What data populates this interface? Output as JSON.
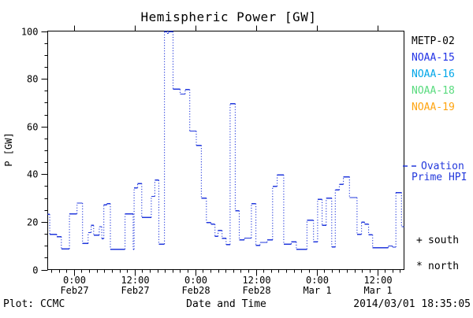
{
  "title": "Hemispheric Power [GW]",
  "axes": {
    "ylabel": "P [GW]",
    "xlabel": "Date and Time"
  },
  "legend": {
    "satellites": [
      {
        "label": "METP-02",
        "color": "#000000"
      },
      {
        "label": "NOAA-15",
        "color": "#2233E6"
      },
      {
        "label": "NOAA-16",
        "color": "#00A6E8"
      },
      {
        "label": "NOAA-18",
        "color": "#59DB7E"
      },
      {
        "label": "NOAA-19",
        "color": "#FFA410"
      }
    ],
    "line_sample_color": "#2238DC",
    "line_label_1": "Ovation",
    "line_label_2": "Prime HPI",
    "south_symbol": "+",
    "south_label": "south",
    "north_symbol": "*",
    "north_label": "north"
  },
  "footer": {
    "left": "Plot: CCMC",
    "right": "2014/03/01 18:35:05"
  },
  "chart_data": {
    "type": "line",
    "step_mode": "step-after",
    "line_style": "solid horizontals, dotted vertical connectors",
    "title": "Hemispheric Power [GW]",
    "xlabel": "Date and Time",
    "ylabel": "P [GW]",
    "ylim": [
      0,
      100
    ],
    "yticks_major": [
      0,
      20,
      40,
      60,
      80,
      100
    ],
    "ytick_minor_step": 5,
    "x_unit": "hours since 2014-02-27 00:00",
    "xlim": [
      -5.2,
      65.3
    ],
    "xtick_minor_step": 1.5,
    "xticks_major": [
      {
        "hour": 0,
        "time": "0:00",
        "date": "Feb27"
      },
      {
        "hour": 12,
        "time": "12:00",
        "date": "Feb27"
      },
      {
        "hour": 24,
        "time": "0:00",
        "date": "Feb28"
      },
      {
        "hour": 36,
        "time": "12:00",
        "date": "Feb28"
      },
      {
        "hour": 48,
        "time": "0:00",
        "date": "Mar 1"
      },
      {
        "hour": 60,
        "time": "12:00",
        "date": "Mar 1"
      }
    ],
    "series": [
      {
        "name": "Ovation Prime HPI",
        "color": "#2238DC",
        "points": [
          [
            -5.2,
            23.2
          ],
          [
            -4.8,
            14.8
          ],
          [
            -3.4,
            13.8
          ],
          [
            -2.5,
            8.7
          ],
          [
            -0.9,
            23.4
          ],
          [
            0.6,
            27.9
          ],
          [
            1.7,
            11.0
          ],
          [
            2.8,
            15.5
          ],
          [
            3.4,
            18.5
          ],
          [
            3.9,
            14.5
          ],
          [
            5.0,
            18.0
          ],
          [
            5.5,
            13.0
          ],
          [
            5.9,
            27.1
          ],
          [
            6.5,
            27.7
          ],
          [
            7.2,
            8.5
          ],
          [
            10.1,
            23.3
          ],
          [
            11.7,
            8.5
          ],
          [
            11.9,
            34.3
          ],
          [
            12.6,
            36.1
          ],
          [
            13.4,
            21.8
          ],
          [
            15.3,
            30.7
          ],
          [
            16.0,
            37.5
          ],
          [
            16.8,
            10.7
          ],
          [
            17.9,
            99.8
          ],
          [
            18.4,
            99.0
          ],
          [
            18.7,
            99.8
          ],
          [
            19.6,
            75.6
          ],
          [
            21.0,
            73.6
          ],
          [
            22.0,
            75.5
          ],
          [
            22.9,
            58.1
          ],
          [
            24.2,
            52.1
          ],
          [
            25.2,
            30.0
          ],
          [
            26.2,
            19.7
          ],
          [
            27.1,
            19.0
          ],
          [
            27.9,
            13.9
          ],
          [
            28.5,
            16.4
          ],
          [
            29.3,
            13.1
          ],
          [
            30.1,
            10.5
          ],
          [
            30.9,
            69.5
          ],
          [
            31.9,
            24.7
          ],
          [
            32.7,
            12.5
          ],
          [
            33.7,
            13.2
          ],
          [
            35.1,
            27.7
          ],
          [
            36.0,
            10.2
          ],
          [
            36.8,
            11.4
          ],
          [
            38.2,
            12.5
          ],
          [
            39.3,
            34.9
          ],
          [
            40.2,
            39.7
          ],
          [
            41.5,
            10.7
          ],
          [
            43.0,
            11.6
          ],
          [
            44.0,
            8.5
          ],
          [
            46.1,
            20.7
          ],
          [
            47.4,
            11.6
          ],
          [
            48.2,
            29.4
          ],
          [
            49.1,
            18.6
          ],
          [
            49.9,
            30.0
          ],
          [
            51.0,
            9.5
          ],
          [
            51.7,
            33.4
          ],
          [
            52.5,
            35.7
          ],
          [
            53.3,
            38.9
          ],
          [
            54.5,
            30.2
          ],
          [
            56.0,
            14.8
          ],
          [
            56.9,
            19.9
          ],
          [
            57.5,
            19.1
          ],
          [
            58.3,
            14.6
          ],
          [
            59.1,
            9.2
          ],
          [
            62.2,
            9.9
          ],
          [
            63.0,
            9.4
          ],
          [
            63.7,
            32.3
          ],
          [
            64.8,
            18.0
          ]
        ]
      }
    ]
  }
}
